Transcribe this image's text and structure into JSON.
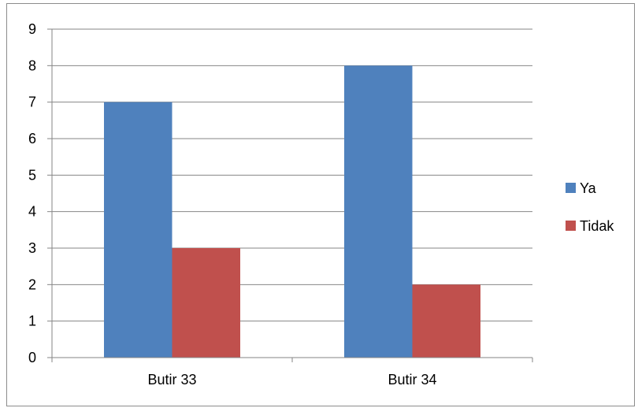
{
  "chart_data": {
    "type": "bar",
    "title": "",
    "xlabel": "",
    "ylabel": "",
    "categories": [
      "Butir 33",
      "Butir 34"
    ],
    "series": [
      {
        "name": "Ya",
        "values": [
          7,
          8
        ],
        "color": "#4F81BD"
      },
      {
        "name": "Tidak",
        "values": [
          3,
          2
        ],
        "color": "#C0504D"
      }
    ],
    "ylim": [
      0,
      9
    ],
    "yticks": [
      0,
      1,
      2,
      3,
      4,
      5,
      6,
      7,
      8,
      9
    ],
    "grid": true,
    "legend_position": "right"
  }
}
